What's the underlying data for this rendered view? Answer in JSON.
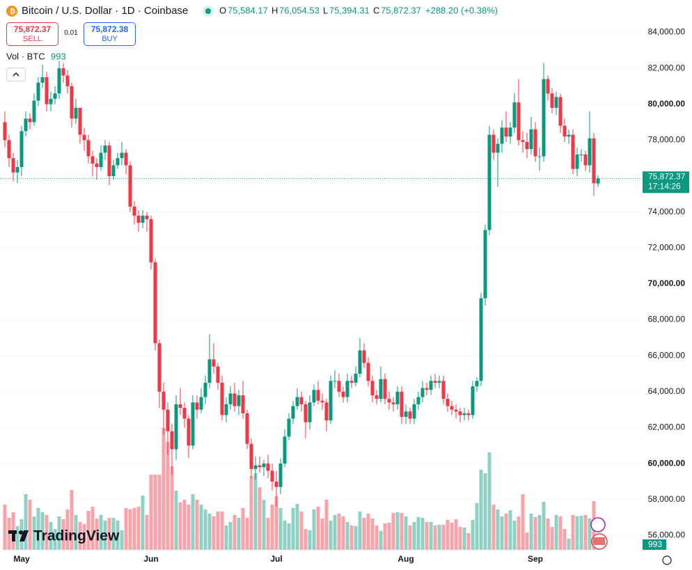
{
  "chart_data": {
    "type": "candlestick",
    "title": "Bitcoin / U.S. Dollar · 1D · Coinbase",
    "legend": {
      "open_label": "O",
      "open": "75,584.17",
      "high_label": "H",
      "high": "76,054.53",
      "low_label": "L",
      "low": "75,394.31",
      "close_label": "C",
      "close": "75,872.37",
      "change": "+288.20 (+0.38%)"
    },
    "trade": {
      "sell_price": "75,872.37",
      "sell_label": "SELL",
      "spread": "0.01",
      "buy_price": "75,872.38",
      "buy_label": "BUY"
    },
    "volume_title": "Vol · BTC",
    "last_price_label": "75,872.37",
    "countdown": "17:14:26",
    "logo": "TradingView",
    "up_color": "#089981",
    "down_color": "#f23645",
    "grid": true,
    "ylim": [
      55200,
      85800
    ],
    "yticks": [
      {
        "value": 56000,
        "label": "56,000.00"
      },
      {
        "value": 58000,
        "label": "58,000.00"
      },
      {
        "value": 60000,
        "label": "60,000.00"
      },
      {
        "value": 62000,
        "label": "62,000.00"
      },
      {
        "value": 64000,
        "label": "64,000.00"
      },
      {
        "value": 66000,
        "label": "66,000.00"
      },
      {
        "value": 68000,
        "label": "68,000.00"
      },
      {
        "value": 70000,
        "label": "70,000.00"
      },
      {
        "value": 72000,
        "label": "72,000.00"
      },
      {
        "value": 74000,
        "label": "74,000.00"
      },
      {
        "value": 76000,
        "label": "76,000.00"
      },
      {
        "value": 78000,
        "label": "78,000.00"
      },
      {
        "value": 80000,
        "label": "80,000.00"
      },
      {
        "value": 82000,
        "label": "82,000.00"
      },
      {
        "value": 84000,
        "label": "84,000.00"
      }
    ],
    "categories": [
      null,
      null,
      null,
      null,
      "May",
      null,
      null,
      null,
      null,
      null,
      null,
      null,
      null,
      null,
      null,
      null,
      null,
      null,
      null,
      null,
      null,
      null,
      null,
      null,
      null,
      null,
      null,
      null,
      null,
      null,
      null,
      null,
      null,
      null,
      null,
      "Jun",
      null,
      null,
      null,
      null,
      null,
      null,
      null,
      null,
      null,
      null,
      null,
      null,
      null,
      null,
      null,
      null,
      null,
      null,
      null,
      null,
      null,
      null,
      null,
      null,
      null,
      null,
      null,
      null,
      null,
      "Jul",
      null,
      null,
      null,
      null,
      null,
      null,
      null,
      null,
      null,
      null,
      null,
      null,
      null,
      null,
      null,
      null,
      null,
      null,
      null,
      null,
      null,
      null,
      null,
      null,
      null,
      null,
      null,
      null,
      null,
      null,
      "Aug",
      null,
      null,
      null,
      null,
      null,
      null,
      null,
      null,
      null,
      null,
      null,
      null,
      null,
      null,
      null,
      null,
      null,
      null,
      null,
      null,
      null,
      null,
      null,
      null,
      null,
      null,
      null,
      null,
      null,
      null,
      "Sep",
      null,
      null,
      null,
      null,
      null,
      null,
      null,
      null,
      null,
      null,
      null,
      null,
      null,
      null,
      null
    ],
    "open": [
      79000,
      78000,
      77000,
      76200,
      76500,
      78500,
      79200,
      79000,
      80200,
      81200,
      81500,
      80000,
      80300,
      80600,
      82000,
      81600,
      81000,
      79200,
      79800,
      78300,
      78000,
      77100,
      76700,
      76500,
      77300,
      77700,
      76000,
      76600,
      77000,
      77300,
      76600,
      74300,
      73800,
      73400,
      73800,
      73600,
      71200,
      66700,
      64000,
      63000,
      61800,
      60800,
      63300,
      63100,
      62500,
      61000,
      63400,
      63000,
      63700,
      64500,
      65800,
      65400,
      64500,
      62700,
      63300,
      63900,
      63200,
      63800,
      62800,
      61100,
      59700,
      59900,
      59800,
      60000,
      59600,
      59000,
      58700,
      60000,
      61500,
      62500,
      63200,
      63700,
      63300,
      62300,
      63400,
      64100,
      63500,
      63400,
      62400,
      64600,
      64600,
      64000,
      63700,
      64600,
      64500,
      65000,
      66300,
      65600,
      64600,
      63800,
      63600,
      64700,
      63600,
      63400,
      63300,
      64000,
      62600,
      62900,
      62500,
      63300,
      63700,
      64200,
      64100,
      64600,
      64500,
      64600,
      63600,
      63200,
      63000,
      62900,
      62700,
      62800,
      62700,
      64300,
      64600,
      69200,
      73000,
      78300,
      77300,
      77800,
      78700,
      78200,
      78700,
      80100,
      78000,
      77900,
      77500,
      78600,
      77100,
      77100,
      81400,
      80600,
      79800,
      80400,
      78800,
      78200,
      78300,
      76400,
      77200,
      77200,
      76600,
      78100,
      75584.17
    ],
    "high": [
      79600,
      78300,
      77300,
      76900,
      78800,
      79600,
      79500,
      80600,
      81500,
      82200,
      81800,
      80700,
      81000,
      82400,
      82300,
      81900,
      81200,
      80300,
      79800,
      78700,
      78300,
      77400,
      77000,
      77700,
      78000,
      77900,
      76900,
      77300,
      77900,
      77500,
      76800,
      74600,
      74100,
      74100,
      74000,
      73800,
      71400,
      66900,
      64500,
      63400,
      62200,
      63800,
      64200,
      63400,
      62700,
      63800,
      63800,
      64200,
      64900,
      67200,
      66700,
      65600,
      64900,
      63700,
      64300,
      64500,
      64100,
      64600,
      63000,
      61400,
      60400,
      60400,
      60200,
      60500,
      60000,
      59600,
      60300,
      61900,
      62800,
      63500,
      64200,
      64000,
      63500,
      63800,
      64400,
      64600,
      63900,
      63600,
      64900,
      65200,
      65000,
      64300,
      65000,
      64900,
      65400,
      67000,
      66700,
      65900,
      64900,
      64100,
      65400,
      65000,
      64000,
      63700,
      64300,
      64300,
      63300,
      63100,
      63600,
      64000,
      64600,
      64500,
      64900,
      65000,
      64900,
      64900,
      63900,
      63500,
      63300,
      63100,
      63100,
      63000,
      64600,
      64800,
      69500,
      73300,
      78800,
      78600,
      78100,
      79100,
      79600,
      79000,
      80600,
      81400,
      78500,
      78400,
      79300,
      79000,
      77600,
      82300,
      81600,
      80900,
      80700,
      80600,
      79200,
      78600,
      78600,
      77600,
      77500,
      77400,
      79600,
      78400,
      76054.53
    ],
    "low": [
      77600,
      76500,
      75700,
      75600,
      76000,
      78200,
      78600,
      78800,
      79900,
      80900,
      79600,
      79600,
      80000,
      80300,
      81200,
      80600,
      78700,
      78900,
      77800,
      77400,
      76700,
      76000,
      75800,
      76300,
      76900,
      75500,
      75800,
      76400,
      76600,
      76100,
      74000,
      73300,
      72900,
      73100,
      72900,
      70800,
      66300,
      63100,
      61600,
      60500,
      59400,
      60200,
      62700,
      62000,
      60300,
      60800,
      62500,
      62800,
      63300,
      64200,
      65000,
      64100,
      62400,
      62300,
      63000,
      62900,
      62700,
      62500,
      60800,
      59200,
      59100,
      59500,
      59300,
      59200,
      58500,
      57600,
      58300,
      59800,
      61300,
      62200,
      63000,
      62900,
      61400,
      61900,
      63200,
      63300,
      63000,
      61800,
      62200,
      64200,
      63700,
      63400,
      63400,
      64200,
      64300,
      64800,
      65300,
      64300,
      63400,
      63300,
      63400,
      63300,
      63000,
      62900,
      63000,
      62200,
      62200,
      62200,
      62200,
      63000,
      63400,
      63800,
      63800,
      64200,
      64200,
      63300,
      62900,
      62700,
      62500,
      62300,
      62400,
      62400,
      62500,
      64000,
      64300,
      68800,
      72700,
      76900,
      75400,
      77300,
      77900,
      77800,
      78400,
      77700,
      77300,
      77000,
      77200,
      76800,
      76300,
      76800,
      80200,
      79500,
      79400,
      78400,
      77900,
      77800,
      76100,
      76000,
      76800,
      76300,
      76200,
      74900,
      75394.31
    ],
    "close": [
      78000,
      77000,
      76200,
      76500,
      78500,
      79200,
      79000,
      80200,
      81200,
      81500,
      80000,
      80300,
      80600,
      82000,
      81600,
      81000,
      79200,
      79800,
      78300,
      78000,
      77100,
      76700,
      76500,
      77300,
      77700,
      76000,
      76600,
      77000,
      77300,
      76600,
      74300,
      73800,
      73400,
      73800,
      73600,
      71200,
      66700,
      64000,
      63000,
      61800,
      60800,
      63300,
      63100,
      62500,
      61000,
      63400,
      63000,
      63700,
      64500,
      65800,
      65400,
      64500,
      62700,
      63300,
      63900,
      63200,
      63800,
      62800,
      61100,
      59700,
      59900,
      59800,
      60000,
      59600,
      59000,
      58700,
      60000,
      61500,
      62500,
      63200,
      63700,
      63300,
      62300,
      63400,
      64100,
      63500,
      63400,
      62400,
      64600,
      64600,
      64000,
      63700,
      64600,
      64500,
      65000,
      66300,
      65600,
      64600,
      63800,
      63600,
      64700,
      63600,
      63400,
      63300,
      64000,
      62600,
      62900,
      62500,
      63300,
      63700,
      64200,
      64100,
      64600,
      64500,
      64600,
      63600,
      63200,
      63000,
      62900,
      62700,
      62800,
      62700,
      64300,
      64600,
      69200,
      73000,
      78300,
      77300,
      77800,
      78700,
      78200,
      78700,
      80100,
      78000,
      77900,
      77500,
      78600,
      77100,
      77100,
      81400,
      80600,
      79800,
      80400,
      78800,
      78200,
      78300,
      76400,
      77200,
      77200,
      76600,
      78100,
      75600,
      75872.37
    ],
    "volume": [
      6500,
      4600,
      5400,
      3400,
      4400,
      8000,
      7200,
      4800,
      6000,
      5400,
      5000,
      4000,
      3000,
      4800,
      4400,
      5800,
      8600,
      5000,
      4000,
      3700,
      5600,
      6200,
      4500,
      5000,
      4200,
      4600,
      4600,
      4200,
      2800,
      6000,
      5800,
      6000,
      6200,
      7800,
      5000,
      10800,
      10800,
      10800,
      17500,
      15500,
      12000,
      8500,
      6800,
      7200,
      6500,
      8000,
      7200,
      6500,
      5800,
      5200,
      4800,
      5500,
      5500,
      3500,
      4000,
      5000,
      4600,
      6000,
      4600,
      10600,
      11000,
      9000,
      7200,
      4600,
      6500,
      7700,
      6000,
      4200,
      3800,
      6000,
      6600,
      5500,
      3000,
      2800,
      5800,
      6200,
      4500,
      7200,
      4200,
      5000,
      5200,
      4800,
      4000,
      3500,
      3400,
      5500,
      4600,
      5200,
      4500,
      3500,
      2700,
      3800,
      3900,
      5300,
      5400,
      5300,
      4800,
      3500,
      4000,
      4700,
      4600,
      4000,
      4000,
      3500,
      3600,
      3600,
      4300,
      3900,
      4400,
      3300,
      3200,
      2400,
      4300,
      6700,
      11500,
      11000,
      14000,
      6500,
      5800,
      4800,
      5200,
      5700,
      4200,
      4800,
      8000,
      2500,
      5200,
      4700,
      5000,
      6900,
      4500,
      3300,
      5000,
      4800,
      3000,
      1600,
      5000,
      4800,
      4900,
      5000,
      4500,
      7000,
      993
    ]
  }
}
